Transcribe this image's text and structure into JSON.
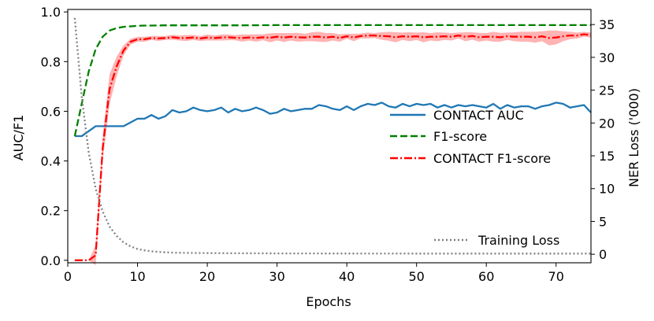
{
  "chart_data": {
    "type": "line",
    "xlabel": "Epochs",
    "ylabel": "AUC/F1",
    "y2label": "NER Loss ('000)",
    "xlim": [
      0,
      75
    ],
    "ylim": [
      -0.01,
      1.01
    ],
    "y2lim": [
      -1.3,
      37.3
    ],
    "xticks": [
      0,
      10,
      20,
      30,
      40,
      50,
      60,
      70
    ],
    "yticks": [
      0.0,
      0.2,
      0.4,
      0.6,
      0.8,
      1.0
    ],
    "y2ticks": [
      0,
      5,
      10,
      15,
      20,
      25,
      30,
      35
    ],
    "grid": false,
    "legend_placement": "right",
    "series": [
      {
        "name": "CONTACT AUC",
        "axis": "left",
        "color": "#1f77b4",
        "style": "solid",
        "x": [
          1,
          2,
          3,
          4,
          5,
          6,
          7,
          8,
          9,
          10,
          11,
          12,
          13,
          14,
          15,
          16,
          17,
          18,
          19,
          20,
          21,
          22,
          23,
          24,
          25,
          26,
          27,
          28,
          29,
          30,
          31,
          32,
          33,
          34,
          35,
          36,
          37,
          38,
          39,
          40,
          41,
          42,
          43,
          44,
          45,
          46,
          47,
          48,
          49,
          50,
          51,
          52,
          53,
          54,
          55,
          56,
          57,
          58,
          59,
          60,
          61,
          62,
          63,
          64,
          65,
          66,
          67,
          68,
          69,
          70,
          71,
          72,
          73,
          74,
          75
        ],
        "y": [
          0.5,
          0.5,
          0.52,
          0.54,
          0.54,
          0.54,
          0.54,
          0.54,
          0.555,
          0.57,
          0.57,
          0.585,
          0.57,
          0.58,
          0.605,
          0.595,
          0.6,
          0.615,
          0.605,
          0.6,
          0.605,
          0.615,
          0.595,
          0.61,
          0.6,
          0.605,
          0.615,
          0.605,
          0.59,
          0.595,
          0.61,
          0.6,
          0.605,
          0.61,
          0.61,
          0.625,
          0.62,
          0.61,
          0.605,
          0.62,
          0.605,
          0.62,
          0.63,
          0.625,
          0.635,
          0.62,
          0.615,
          0.63,
          0.62,
          0.63,
          0.625,
          0.63,
          0.615,
          0.625,
          0.615,
          0.625,
          0.62,
          0.625,
          0.62,
          0.615,
          0.63,
          0.61,
          0.625,
          0.615,
          0.62,
          0.62,
          0.61,
          0.62,
          0.625,
          0.635,
          0.63,
          0.615,
          0.62,
          0.625,
          0.595
        ]
      },
      {
        "name": "F1-score",
        "axis": "left",
        "color": "#008000",
        "style": "dashed",
        "x": [
          1,
          2,
          3,
          4,
          5,
          6,
          7,
          8,
          9,
          10,
          11,
          12,
          14,
          16,
          18,
          20,
          25,
          30,
          35,
          40,
          45,
          50,
          55,
          60,
          65,
          70,
          75
        ],
        "y": [
          0.5,
          0.63,
          0.76,
          0.85,
          0.9,
          0.925,
          0.935,
          0.94,
          0.942,
          0.944,
          0.945,
          0.945,
          0.946,
          0.946,
          0.946,
          0.946,
          0.946,
          0.947,
          0.947,
          0.947,
          0.947,
          0.947,
          0.947,
          0.947,
          0.947,
          0.947,
          0.947
        ]
      },
      {
        "name": "CONTACT F1-score",
        "axis": "left",
        "color": "#ff0000",
        "style": "dashdot",
        "band_color": "#ffb3b3",
        "x": [
          1,
          2,
          3,
          4,
          5,
          6,
          7,
          8,
          9,
          10,
          11,
          12,
          13,
          14,
          15,
          16,
          17,
          18,
          19,
          20,
          21,
          22,
          23,
          24,
          25,
          26,
          27,
          28,
          29,
          30,
          31,
          32,
          33,
          34,
          35,
          36,
          37,
          38,
          39,
          40,
          41,
          42,
          43,
          44,
          45,
          46,
          47,
          48,
          49,
          50,
          51,
          52,
          53,
          54,
          55,
          56,
          57,
          58,
          59,
          60,
          61,
          62,
          63,
          64,
          65,
          66,
          67,
          68,
          69,
          70,
          71,
          72,
          73,
          74,
          75
        ],
        "y": [
          0.0,
          0.0,
          0.0,
          0.02,
          0.45,
          0.69,
          0.78,
          0.845,
          0.88,
          0.89,
          0.89,
          0.895,
          0.893,
          0.895,
          0.898,
          0.895,
          0.895,
          0.897,
          0.893,
          0.897,
          0.895,
          0.897,
          0.898,
          0.896,
          0.895,
          0.897,
          0.895,
          0.898,
          0.896,
          0.9,
          0.897,
          0.9,
          0.898,
          0.897,
          0.9,
          0.9,
          0.897,
          0.9,
          0.895,
          0.902,
          0.897,
          0.903,
          0.905,
          0.905,
          0.903,
          0.902,
          0.898,
          0.902,
          0.9,
          0.902,
          0.898,
          0.9,
          0.9,
          0.902,
          0.9,
          0.905,
          0.9,
          0.903,
          0.898,
          0.9,
          0.9,
          0.898,
          0.902,
          0.9,
          0.9,
          0.9,
          0.898,
          0.902,
          0.895,
          0.897,
          0.902,
          0.905,
          0.905,
          0.91,
          0.907
        ],
        "band": [
          0.0,
          0.0,
          0.0,
          0.04,
          0.05,
          0.06,
          0.04,
          0.02,
          0.012,
          0.01,
          0.01,
          0.008,
          0.01,
          0.008,
          0.01,
          0.01,
          0.012,
          0.01,
          0.01,
          0.012,
          0.01,
          0.012,
          0.012,
          0.01,
          0.015,
          0.012,
          0.015,
          0.012,
          0.018,
          0.015,
          0.018,
          0.015,
          0.018,
          0.015,
          0.018,
          0.02,
          0.018,
          0.015,
          0.015,
          0.01,
          0.015,
          0.01,
          0.012,
          0.01,
          0.015,
          0.018,
          0.02,
          0.015,
          0.018,
          0.015,
          0.02,
          0.015,
          0.018,
          0.015,
          0.015,
          0.012,
          0.018,
          0.015,
          0.018,
          0.015,
          0.02,
          0.018,
          0.015,
          0.018,
          0.02,
          0.02,
          0.022,
          0.02,
          0.03,
          0.028,
          0.02,
          0.015,
          0.012,
          0.01,
          0.01
        ]
      },
      {
        "name": "Training Loss",
        "axis": "right",
        "color": "#808080",
        "style": "dotted",
        "x": [
          1,
          2,
          3,
          4,
          5,
          6,
          7,
          8,
          9,
          10,
          11,
          12,
          13,
          14,
          15,
          16,
          18,
          20,
          25,
          30,
          40,
          50,
          60,
          70,
          75
        ],
        "y": [
          36.0,
          24.0,
          15.5,
          10.0,
          6.5,
          4.2,
          2.8,
          1.8,
          1.2,
          0.8,
          0.6,
          0.45,
          0.35,
          0.3,
          0.25,
          0.22,
          0.2,
          0.18,
          0.15,
          0.13,
          0.12,
          0.1,
          0.1,
          0.1,
          0.1
        ]
      }
    ]
  }
}
